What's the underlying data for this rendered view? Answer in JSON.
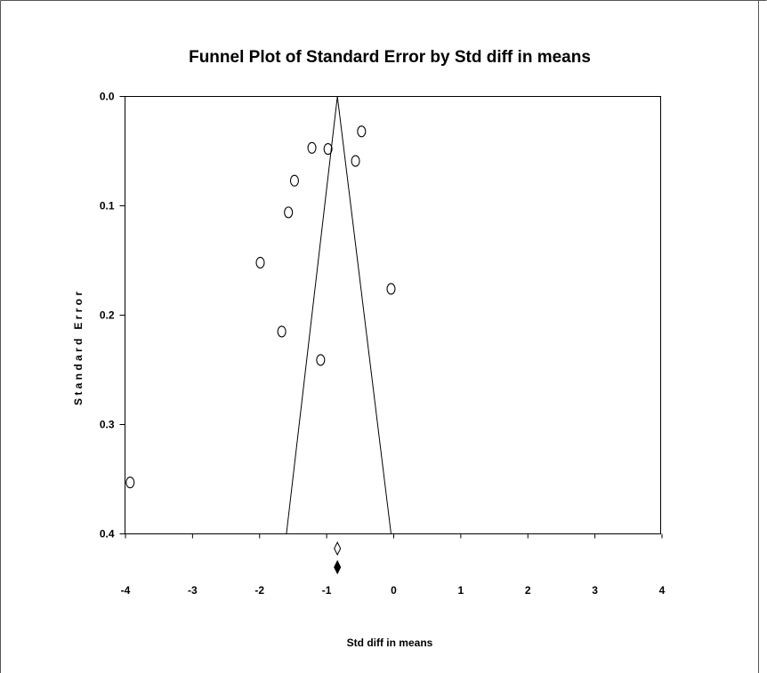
{
  "chart_data": {
    "type": "scatter",
    "title": "Funnel Plot of Standard Error by Std diff in means",
    "xlabel": "Std diff in means",
    "ylabel": "S t a n d a r d   E r r o r",
    "xlim": [
      -4,
      4
    ],
    "ylim": [
      0.0,
      0.4
    ],
    "y_inverted": true,
    "x_ticks": [
      -4,
      -3,
      -2,
      -1,
      0,
      1,
      2,
      3,
      4
    ],
    "x_tick_labels": [
      "-4",
      "-3",
      "-2",
      "-1",
      "0",
      "1",
      "2",
      "3",
      "4"
    ],
    "y_ticks": [
      0.0,
      0.1,
      0.2,
      0.3,
      0.4
    ],
    "y_tick_labels": [
      "0.0",
      "0.1",
      "0.2",
      "0.3",
      "0.4"
    ],
    "grid": false,
    "points": [
      {
        "x": -0.48,
        "y": 0.032
      },
      {
        "x": -1.22,
        "y": 0.047
      },
      {
        "x": -0.98,
        "y": 0.048
      },
      {
        "x": -0.57,
        "y": 0.059
      },
      {
        "x": -1.48,
        "y": 0.077
      },
      {
        "x": -1.57,
        "y": 0.106
      },
      {
        "x": -1.99,
        "y": 0.152
      },
      {
        "x": -0.04,
        "y": 0.176
      },
      {
        "x": -1.67,
        "y": 0.215
      },
      {
        "x": -1.09,
        "y": 0.241
      },
      {
        "x": -3.93,
        "y": 0.353
      }
    ],
    "funnel": {
      "center": -0.84,
      "top_se": 0.0,
      "bottom_se": 0.4,
      "left_bottom": -1.6,
      "right_bottom": -0.04
    },
    "summary_markers": [
      {
        "x": -0.84,
        "style": "open-diamond"
      },
      {
        "x": -0.84,
        "style": "filled-diamond"
      }
    ]
  }
}
